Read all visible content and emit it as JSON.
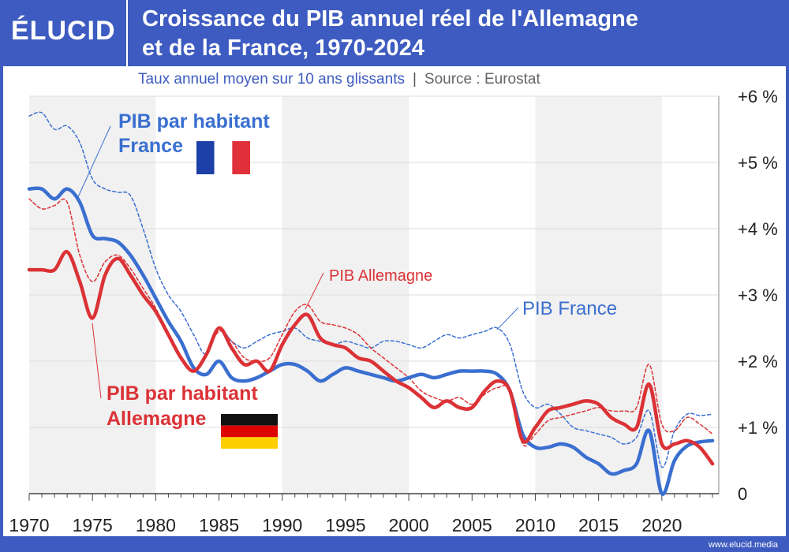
{
  "header": {
    "logo": "ÉLUCID",
    "title_line1": "Croissance du PIB annuel réel de l'Allemagne",
    "title_line2": "et de la France, 1970-2024"
  },
  "subtitle": {
    "main": "Taux annuel moyen sur 10 ans glissants",
    "separator": "|",
    "source": "Source : Eurostat"
  },
  "footer": {
    "url": "www.elucid.media"
  },
  "colors": {
    "france": "#3a6fd0",
    "germany": "#db3236",
    "brand": "#3d5bc0"
  },
  "chart_data": {
    "type": "line",
    "title": "Croissance du PIB annuel réel de l'Allemagne et de la France, 1970-2024",
    "subtitle": "Taux annuel moyen sur 10 ans glissants",
    "xlim": [
      1970,
      2024.5
    ],
    "ylim": [
      0,
      6
    ],
    "x_ticks": [
      1970,
      1975,
      1980,
      1985,
      1990,
      1995,
      2000,
      2005,
      2010,
      2015,
      2020
    ],
    "y_ticks": [
      0,
      1,
      2,
      3,
      4,
      5,
      6
    ],
    "y_tick_labels": [
      "0",
      "+1 %",
      "+2 %",
      "+3 %",
      "+4 %",
      "+5 %",
      "+6 %"
    ],
    "series": [
      {
        "name": "PIB France",
        "style": "dashed",
        "color": "#3a6fd0",
        "x": [
          1970,
          1971,
          1972,
          1973,
          1974,
          1975,
          1976,
          1977,
          1978,
          1979,
          1980,
          1981,
          1982,
          1983,
          1984,
          1985,
          1986,
          1987,
          1988,
          1989,
          1990,
          1991,
          1992,
          1993,
          1994,
          1995,
          1996,
          1997,
          1998,
          1999,
          2000,
          2001,
          2002,
          2003,
          2004,
          2005,
          2006,
          2007,
          2008,
          2009,
          2010,
          2011,
          2012,
          2013,
          2014,
          2015,
          2016,
          2017,
          2018,
          2019,
          2020,
          2021,
          2022,
          2023,
          2024
        ],
        "values": [
          5.7,
          5.75,
          5.5,
          5.55,
          5.3,
          4.75,
          4.6,
          4.55,
          4.5,
          4.0,
          3.4,
          3.0,
          2.75,
          2.4,
          2.1,
          2.5,
          2.3,
          2.2,
          2.3,
          2.4,
          2.45,
          2.5,
          2.35,
          2.3,
          2.25,
          2.3,
          2.25,
          2.2,
          2.3,
          2.3,
          2.25,
          2.2,
          2.3,
          2.4,
          2.35,
          2.4,
          2.45,
          2.5,
          2.25,
          1.55,
          1.3,
          1.35,
          1.2,
          1.0,
          0.95,
          0.9,
          0.85,
          0.75,
          0.85,
          1.25,
          0.4,
          0.95,
          1.2,
          1.18,
          1.2
        ]
      },
      {
        "name": "PIB Allemagne",
        "style": "dashed",
        "color": "#db3236",
        "x": [
          1970,
          1971,
          1972,
          1973,
          1974,
          1975,
          1976,
          1977,
          1978,
          1979,
          1980,
          1981,
          1982,
          1983,
          1984,
          1985,
          1986,
          1987,
          1988,
          1989,
          1990,
          1991,
          1992,
          1993,
          1994,
          1995,
          1996,
          1997,
          1998,
          1999,
          2000,
          2001,
          2002,
          2003,
          2004,
          2005,
          2006,
          2007,
          2008,
          2009,
          2010,
          2011,
          2012,
          2013,
          2014,
          2015,
          2016,
          2017,
          2018,
          2019,
          2020,
          2021,
          2022,
          2023,
          2024
        ],
        "values": [
          4.45,
          4.3,
          4.35,
          4.4,
          3.6,
          3.2,
          3.5,
          3.6,
          3.4,
          3.1,
          2.8,
          2.4,
          2.05,
          1.85,
          2.1,
          2.45,
          2.3,
          2.05,
          2.0,
          2.05,
          2.4,
          2.75,
          2.85,
          2.6,
          2.55,
          2.5,
          2.4,
          2.2,
          2.05,
          1.9,
          1.75,
          1.55,
          1.45,
          1.4,
          1.45,
          1.35,
          1.5,
          1.6,
          1.55,
          0.75,
          0.9,
          1.1,
          1.15,
          1.2,
          1.25,
          1.3,
          1.25,
          1.25,
          1.3,
          1.95,
          1.05,
          0.95,
          1.15,
          1.05,
          0.9
        ]
      },
      {
        "name": "PIB par habitant France",
        "style": "solid",
        "color": "#3a6fd0",
        "x": [
          1970,
          1971,
          1972,
          1973,
          1974,
          1975,
          1976,
          1977,
          1978,
          1979,
          1980,
          1981,
          1982,
          1983,
          1984,
          1985,
          1986,
          1987,
          1988,
          1989,
          1990,
          1991,
          1992,
          1993,
          1994,
          1995,
          1996,
          1997,
          1998,
          1999,
          2000,
          2001,
          2002,
          2003,
          2004,
          2005,
          2006,
          2007,
          2008,
          2009,
          2010,
          2011,
          2012,
          2013,
          2014,
          2015,
          2016,
          2017,
          2018,
          2019,
          2020,
          2021,
          2022,
          2023,
          2024
        ],
        "values": [
          4.6,
          4.6,
          4.45,
          4.6,
          4.4,
          3.9,
          3.85,
          3.8,
          3.6,
          3.3,
          2.95,
          2.6,
          2.3,
          1.9,
          1.8,
          2.0,
          1.75,
          1.7,
          1.75,
          1.85,
          1.95,
          1.95,
          1.85,
          1.7,
          1.8,
          1.9,
          1.85,
          1.8,
          1.75,
          1.7,
          1.75,
          1.8,
          1.75,
          1.8,
          1.85,
          1.85,
          1.85,
          1.8,
          1.55,
          0.9,
          0.7,
          0.7,
          0.75,
          0.7,
          0.55,
          0.45,
          0.3,
          0.35,
          0.45,
          0.95,
          0.0,
          0.5,
          0.72,
          0.78,
          0.8
        ]
      },
      {
        "name": "PIB par habitant Allemagne",
        "style": "solid",
        "color": "#db3236",
        "x": [
          1970,
          1971,
          1972,
          1973,
          1974,
          1975,
          1976,
          1977,
          1978,
          1979,
          1980,
          1981,
          1982,
          1983,
          1984,
          1985,
          1986,
          1987,
          1988,
          1989,
          1990,
          1991,
          1992,
          1993,
          1994,
          1995,
          1996,
          1997,
          1998,
          1999,
          2000,
          2001,
          2002,
          2003,
          2004,
          2005,
          2006,
          2007,
          2008,
          2009,
          2010,
          2011,
          2012,
          2013,
          2014,
          2015,
          2016,
          2017,
          2018,
          2019,
          2020,
          2021,
          2022,
          2023,
          2024
        ],
        "values": [
          3.38,
          3.38,
          3.38,
          3.65,
          3.2,
          2.65,
          3.3,
          3.55,
          3.3,
          3.0,
          2.75,
          2.4,
          2.05,
          1.85,
          2.1,
          2.5,
          2.2,
          1.95,
          2.0,
          1.85,
          2.25,
          2.55,
          2.7,
          2.35,
          2.25,
          2.2,
          2.05,
          2.0,
          1.85,
          1.7,
          1.6,
          1.45,
          1.3,
          1.4,
          1.3,
          1.3,
          1.55,
          1.7,
          1.55,
          0.8,
          1.0,
          1.25,
          1.3,
          1.35,
          1.4,
          1.35,
          1.15,
          1.05,
          1.0,
          1.65,
          0.75,
          0.75,
          0.8,
          0.7,
          0.45
        ]
      }
    ],
    "annotations": [
      {
        "text_line1": "PIB par habitant",
        "text_line2": "France",
        "color": "#3a6fd0",
        "flag": "france"
      },
      {
        "text": "PIB Allemagne",
        "color": "#db3236"
      },
      {
        "text": "PIB France",
        "color": "#3a6fd0"
      },
      {
        "text_line1": "PIB par habitant",
        "text_line2": "Allemagne",
        "color": "#db3236",
        "flag": "germany"
      }
    ]
  }
}
